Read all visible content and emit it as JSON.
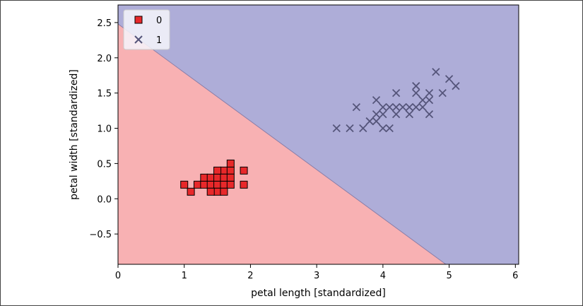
{
  "chart_data": {
    "type": "scatter",
    "xlabel": "petal length [standardized]",
    "ylabel": "petal width [standardized]",
    "xlim": [
      0.0,
      6.05
    ],
    "ylim": [
      -0.93,
      2.75
    ],
    "xticks": [
      "0",
      "1",
      "2",
      "3",
      "4",
      "5",
      "6"
    ],
    "yticks": [
      "−0.5",
      "0.0",
      "0.5",
      "1.0",
      "1.5",
      "2.0",
      "2.5"
    ],
    "xtick_values": [
      0,
      1,
      2,
      3,
      4,
      5,
      6
    ],
    "ytick_values": [
      -0.5,
      0.0,
      0.5,
      1.0,
      1.5,
      2.0,
      2.5
    ],
    "decision_boundary": {
      "points": [
        [
          0.0,
          2.48
        ],
        [
          4.95,
          -0.93
        ]
      ]
    },
    "regions": [
      {
        "class": "0",
        "color": "#f8b1b3"
      },
      {
        "class": "1",
        "color": "#aeadd8"
      }
    ],
    "legend": {
      "position": "top-left"
    },
    "series": [
      {
        "name": "0",
        "marker": "square",
        "color": "#e8282a",
        "edge_color": "#000000",
        "points": [
          [
            1.0,
            0.2
          ],
          [
            1.1,
            0.1
          ],
          [
            1.2,
            0.2
          ],
          [
            1.3,
            0.2
          ],
          [
            1.3,
            0.3
          ],
          [
            1.4,
            0.2
          ],
          [
            1.4,
            0.3
          ],
          [
            1.5,
            0.2
          ],
          [
            1.5,
            0.3
          ],
          [
            1.5,
            0.1
          ],
          [
            1.6,
            0.2
          ],
          [
            1.6,
            0.4
          ],
          [
            1.5,
            0.4
          ],
          [
            1.6,
            0.3
          ],
          [
            1.7,
            0.4
          ],
          [
            1.7,
            0.5
          ],
          [
            1.7,
            0.2
          ],
          [
            1.7,
            0.3
          ],
          [
            1.4,
            0.1
          ],
          [
            1.9,
            0.4
          ],
          [
            1.9,
            0.2
          ],
          [
            1.6,
            0.1
          ]
        ]
      },
      {
        "name": "1",
        "marker": "x",
        "color": "#55557a",
        "points": [
          [
            3.3,
            1.0
          ],
          [
            3.5,
            1.0
          ],
          [
            3.6,
            1.3
          ],
          [
            3.7,
            1.0
          ],
          [
            3.8,
            1.1
          ],
          [
            3.9,
            1.1
          ],
          [
            3.9,
            1.2
          ],
          [
            3.9,
            1.4
          ],
          [
            4.0,
            1.2
          ],
          [
            4.0,
            1.3
          ],
          [
            4.1,
            1.3
          ],
          [
            4.1,
            1.0
          ],
          [
            4.2,
            1.2
          ],
          [
            4.2,
            1.3
          ],
          [
            4.2,
            1.5
          ],
          [
            4.3,
            1.3
          ],
          [
            4.4,
            1.3
          ],
          [
            4.4,
            1.2
          ],
          [
            4.5,
            1.3
          ],
          [
            4.5,
            1.5
          ],
          [
            4.5,
            1.6
          ],
          [
            4.6,
            1.3
          ],
          [
            4.6,
            1.4
          ],
          [
            4.7,
            1.4
          ],
          [
            4.7,
            1.5
          ],
          [
            4.7,
            1.2
          ],
          [
            4.8,
            1.8
          ],
          [
            4.9,
            1.5
          ],
          [
            5.0,
            1.7
          ],
          [
            5.1,
            1.6
          ],
          [
            4.0,
            1.0
          ]
        ]
      }
    ]
  }
}
